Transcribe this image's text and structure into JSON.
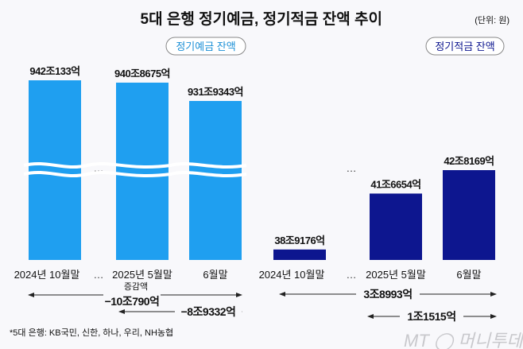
{
  "title": "5대 은행 정기예금, 정기적금 잔액 추이",
  "unit": "(단위: 원)",
  "footnote": "*5대 은행: KB국민, 신한, 하나, 우리, NH농협",
  "watermark": "MT 머니투데이",
  "colors": {
    "deposit": "#1f9ff0",
    "savings": "#0d168f",
    "deposit_label": "#1a8fd6",
    "savings_label": "#0d168f"
  },
  "chart_data": [
    {
      "type": "bar",
      "title": "정기예금 잔액",
      "categories": [
        "2024년 10월말",
        "2025년 5월말",
        "6월말"
      ],
      "values": [
        942.0133,
        940.8675,
        931.9343
      ],
      "value_labels": [
        "942조133억",
        "940조8675억",
        "931조9343억"
      ],
      "axis_break": true,
      "ellipsis": "…",
      "annotations": {
        "change_title": "증감액",
        "change_long": "−10조790억",
        "change_short": "−8조9332억"
      }
    },
    {
      "type": "bar",
      "title": "정기적금 잔액",
      "categories": [
        "2024년 10월말",
        "2025년 5월말",
        "6월말"
      ],
      "values": [
        38.9176,
        41.6654,
        42.8169
      ],
      "value_labels": [
        "38조9176억",
        "41조6654억",
        "42조8169억"
      ],
      "ellipsis": "…",
      "annotations": {
        "change_long": "3조8993억",
        "change_short": "1조1515억"
      }
    }
  ]
}
